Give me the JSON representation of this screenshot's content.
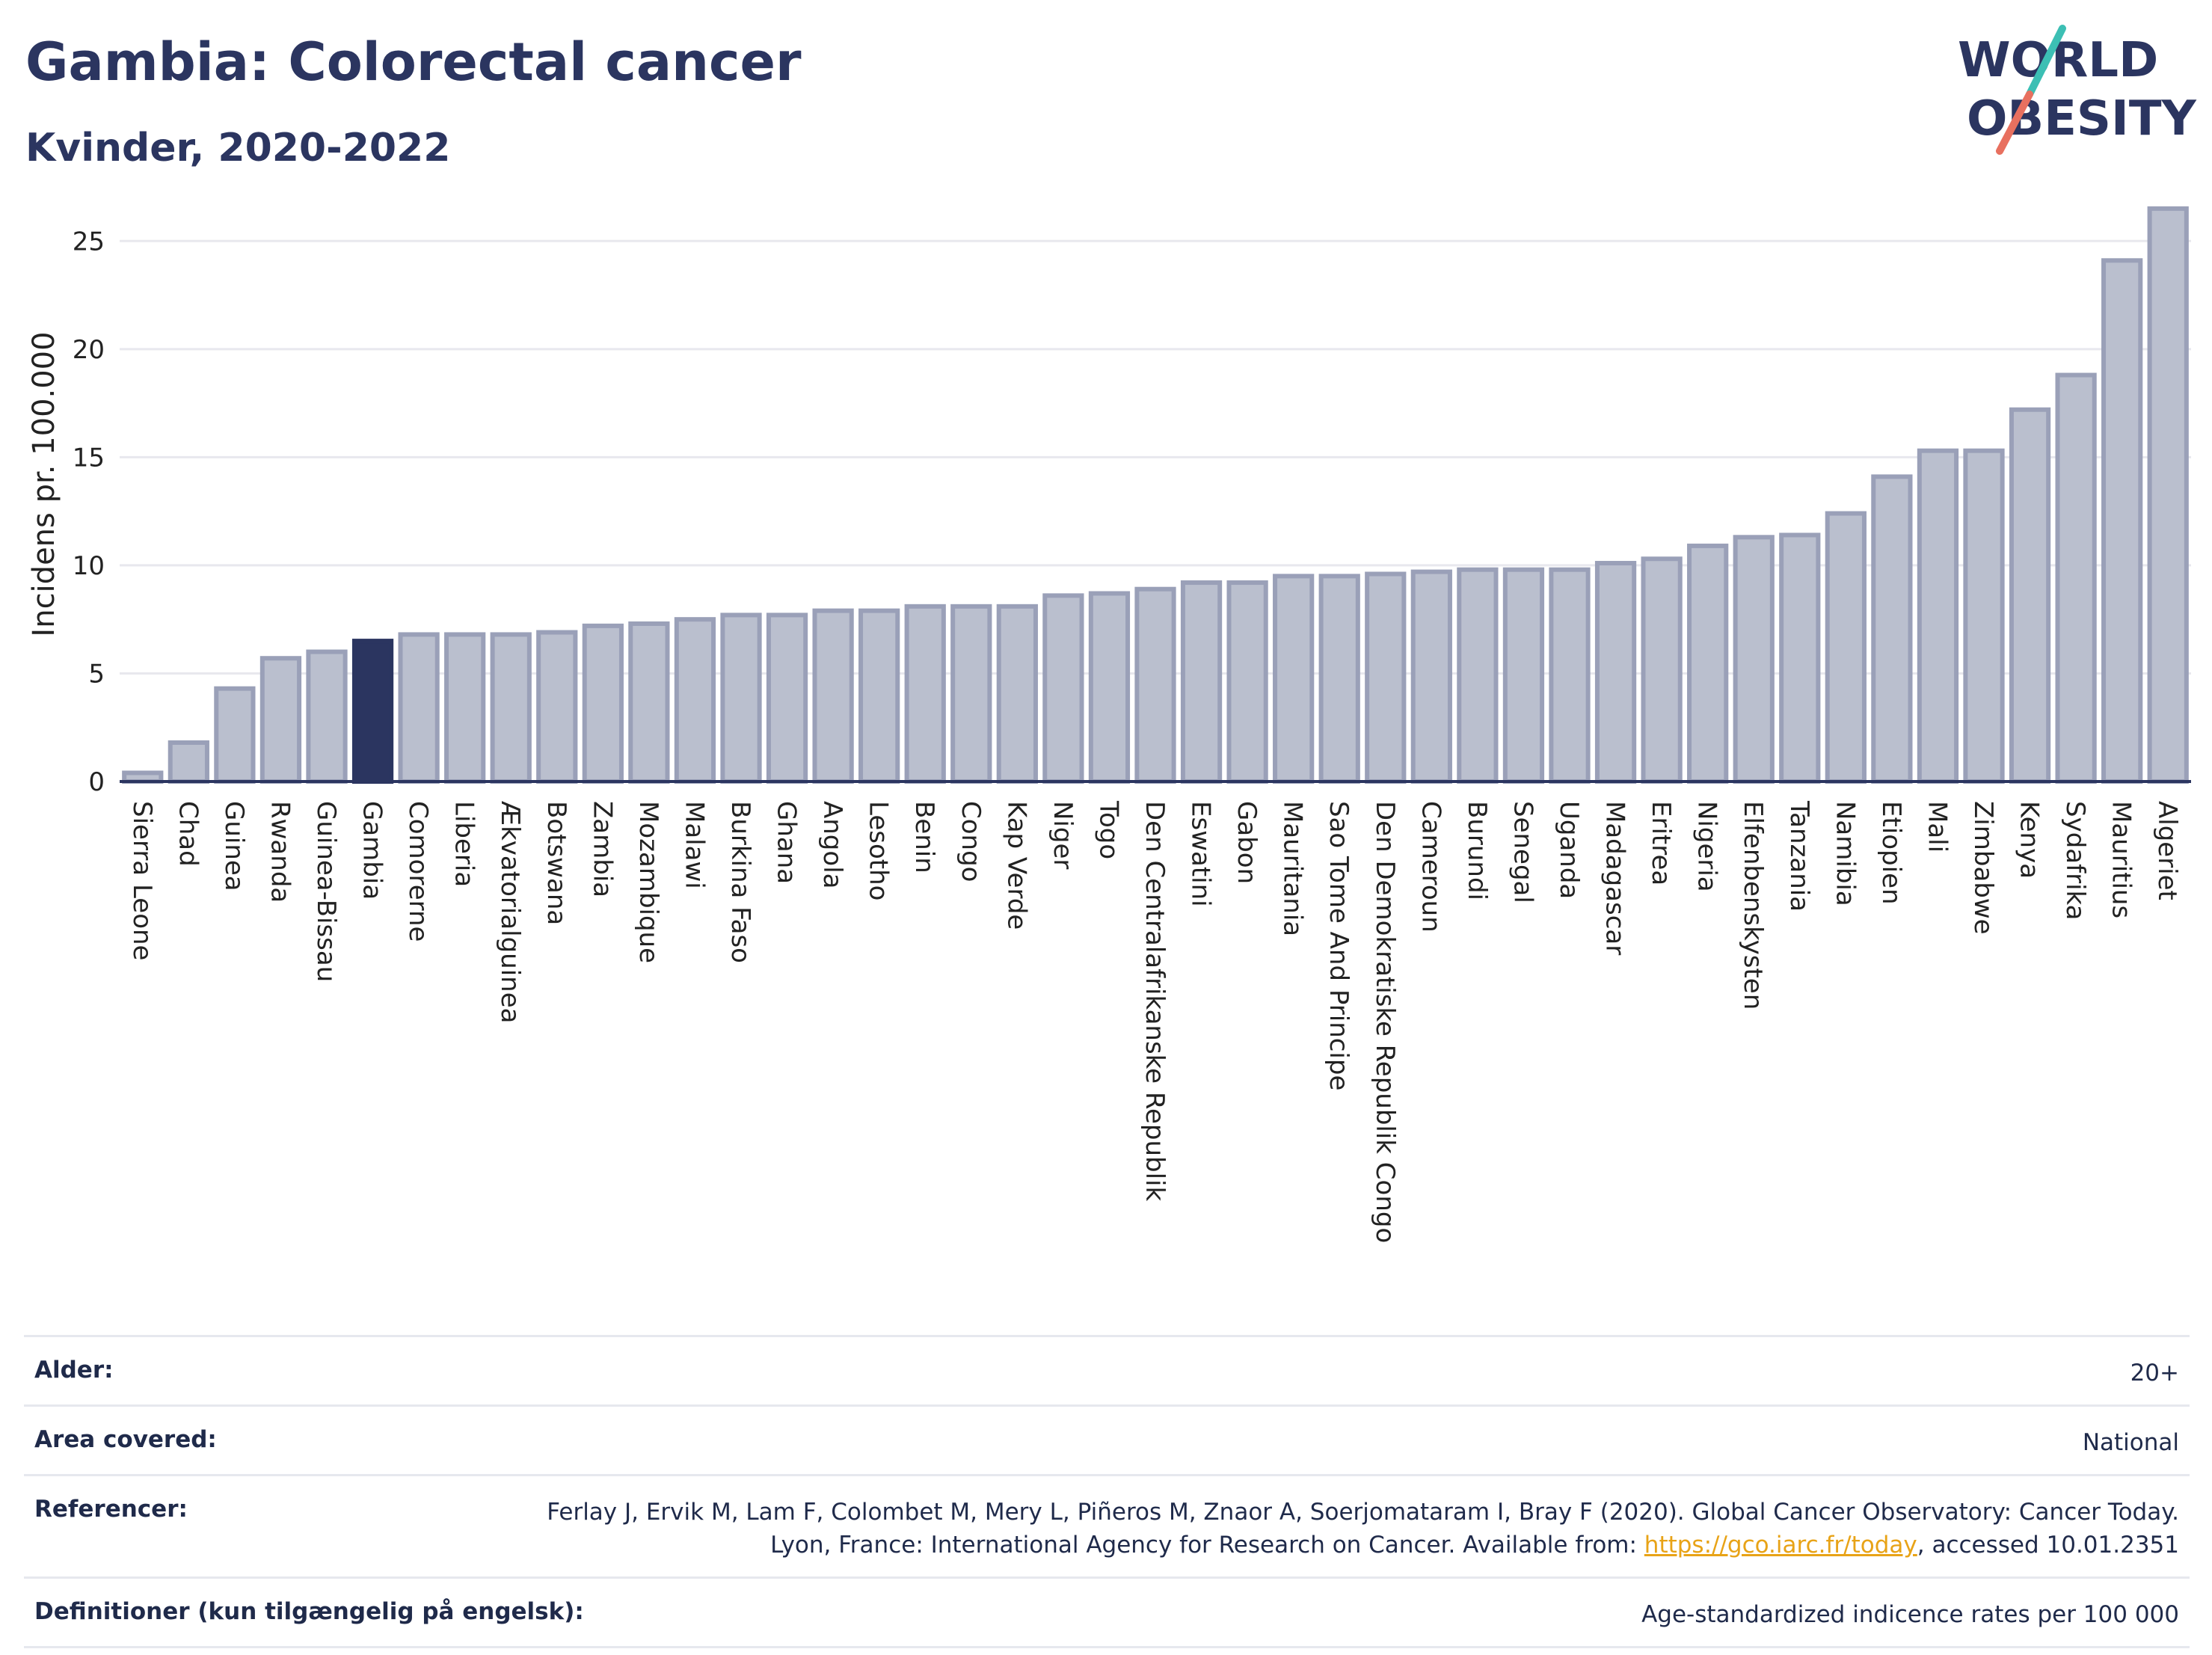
{
  "header": {
    "title": "Gambia: Colorectal cancer",
    "subtitle": "Kvinder, 2020-2022",
    "logo_line1": "WORLD",
    "logo_line2": "OBESITY"
  },
  "colors": {
    "bar": "#babfce",
    "bar_stroke": "#9aa0b8",
    "highlight": "#2b3560",
    "axis_text": "#222222",
    "grid": "#e8e8ee",
    "logo_teal": "#3cbfb4",
    "logo_coral": "#e8705f"
  },
  "chart_data": {
    "type": "bar",
    "ylabel": "Incidens pr. 100.000",
    "ylim": [
      0,
      27.5
    ],
    "yticks": [
      0,
      5,
      10,
      15,
      20,
      25
    ],
    "grid": true,
    "highlight": "Gambia",
    "categories": [
      "Sierra Leone",
      "Chad",
      "Guinea",
      "Rwanda",
      "Guinea-Bissau",
      "Gambia",
      "Comorerne",
      "Liberia",
      "Ækvatorialguinea",
      "Botswana",
      "Zambia",
      "Mozambique",
      "Malawi",
      "Burkina Faso",
      "Ghana",
      "Angola",
      "Lesotho",
      "Benin",
      "Congo",
      "Kap Verde",
      "Niger",
      "Togo",
      "Den Centralafrikanske Republik",
      "Eswatini",
      "Gabon",
      "Mauritania",
      "Sao Tome And Principe",
      "Den Demokratiske Republik Congo",
      "Cameroun",
      "Burundi",
      "Senegal",
      "Uganda",
      "Madagascar",
      "Eritrea",
      "Nigeria",
      "Elfenbenskysten",
      "Tanzania",
      "Namibia",
      "Etiopien",
      "Mali",
      "Zimbabwe",
      "Kenya",
      "Sydafrika",
      "Mauritius",
      "Algeriet"
    ],
    "values": [
      0.4,
      1.8,
      4.3,
      5.7,
      6.0,
      6.5,
      6.8,
      6.8,
      6.8,
      6.9,
      7.2,
      7.3,
      7.5,
      7.7,
      7.7,
      7.9,
      7.9,
      8.1,
      8.1,
      8.1,
      8.6,
      8.7,
      8.9,
      9.2,
      9.2,
      9.5,
      9.5,
      9.6,
      9.7,
      9.8,
      9.8,
      9.8,
      10.1,
      10.3,
      10.9,
      11.3,
      11.4,
      12.4,
      14.1,
      15.3,
      15.3,
      17.2,
      18.8,
      24.1,
      26.5
    ]
  },
  "meta": [
    {
      "label": "Alder:",
      "value": "20+"
    },
    {
      "label": "Area covered:",
      "value": "National"
    },
    {
      "label": "Referencer:",
      "value": "Ferlay J, Ervik M, Lam F, Colombet M, Mery L, Piñeros M, Znaor A, Soerjomataram I, Bray F (2020). Global Cancer Observatory: Cancer Today. Lyon, France: International Agency for Research on Cancer. Available from: ",
      "link": "https://gco.iarc.fr/today",
      "suffix": ", accessed 10.01.2351"
    },
    {
      "label": "Definitioner (kun tilgængelig på engelsk):",
      "value": "Age-standardized indicence rates per 100 000"
    }
  ]
}
